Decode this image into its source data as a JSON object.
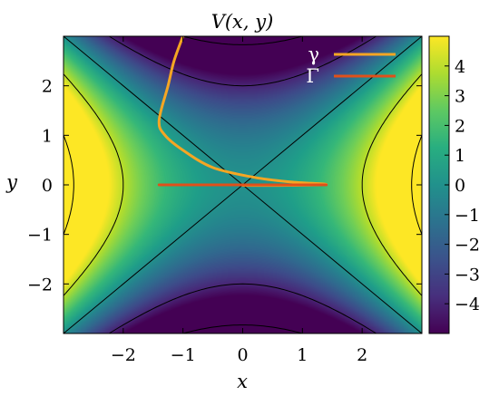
{
  "chart_data": {
    "type": "heatmap",
    "title": "V(x, y)",
    "xlabel": "x",
    "ylabel": "y",
    "xlim": [
      -3,
      3
    ],
    "ylim": [
      -3,
      3
    ],
    "function": "V = x^2 - y^2 (saddle)",
    "xticks": [
      -2,
      -1,
      0,
      1,
      2
    ],
    "yticks": [
      -2,
      -1,
      0,
      1,
      2
    ],
    "xtick_labels": [
      "−2",
      "−1",
      "0",
      "1",
      "2"
    ],
    "ytick_labels": [
      "−2",
      "−1",
      "0",
      "1",
      "2"
    ],
    "colorbar": {
      "range": [
        -5,
        5
      ],
      "ticks": [
        -4,
        -3,
        -2,
        -1,
        0,
        1,
        2,
        3,
        4
      ],
      "tick_labels": [
        "−4",
        "−3",
        "−2",
        "−1",
        "0",
        "1",
        "2",
        "3",
        "4"
      ],
      "colormap": "viridis"
    },
    "contour_levels": [
      -8,
      -4,
      0,
      4,
      8
    ],
    "legend_placement": "top-right",
    "series": [
      {
        "name": "γ",
        "color": "#f5a623",
        "points": [
          [
            -1.0,
            3.0
          ],
          [
            -1.15,
            2.5
          ],
          [
            -1.25,
            2.0
          ],
          [
            -1.4,
            1.3
          ],
          [
            -1.3,
            1.0
          ],
          [
            -1.0,
            0.7
          ],
          [
            -0.5,
            0.35
          ],
          [
            0.2,
            0.15
          ],
          [
            0.8,
            0.06
          ],
          [
            1.4,
            0.01
          ],
          [
            0.8,
            -0.01
          ],
          [
            0.0,
            -0.01
          ]
        ]
      },
      {
        "name": "Γ",
        "color": "#e0501a",
        "points": [
          [
            -1.4,
            0.0
          ],
          [
            1.4,
            0.0
          ]
        ]
      }
    ]
  }
}
